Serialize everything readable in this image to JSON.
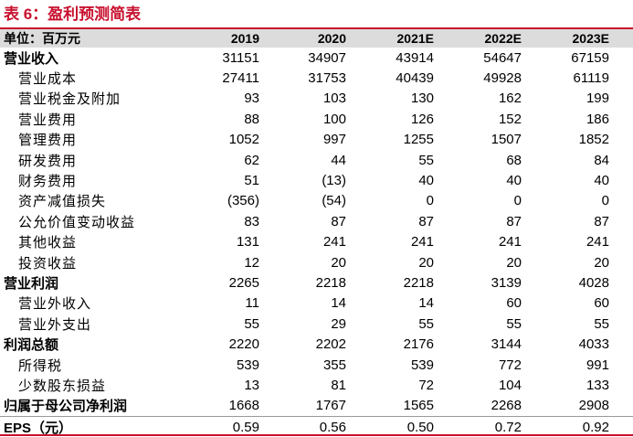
{
  "title": "表 6：盈利预测简表",
  "header": [
    "单位：百万元",
    "2019",
    "2020",
    "2021E",
    "2022E",
    "2023E"
  ],
  "rows": [
    {
      "label": "营业收入",
      "bold": true,
      "values": [
        "31151",
        "34907",
        "43914",
        "54647",
        "67159"
      ]
    },
    {
      "label": "营业成本",
      "bold": false,
      "values": [
        "27411",
        "31753",
        "40439",
        "49928",
        "61119"
      ]
    },
    {
      "label": "营业税金及附加",
      "bold": false,
      "values": [
        "93",
        "103",
        "130",
        "162",
        "199"
      ]
    },
    {
      "label": "营业费用",
      "bold": false,
      "values": [
        "88",
        "100",
        "126",
        "152",
        "186"
      ]
    },
    {
      "label": "管理费用",
      "bold": false,
      "values": [
        "1052",
        "997",
        "1255",
        "1507",
        "1852"
      ]
    },
    {
      "label": "研发费用",
      "bold": false,
      "values": [
        "62",
        "44",
        "55",
        "68",
        "84"
      ]
    },
    {
      "label": "财务费用",
      "bold": false,
      "values": [
        "51",
        "(13)",
        "40",
        "40",
        "40"
      ]
    },
    {
      "label": "资产减值损失",
      "bold": false,
      "values": [
        "(356)",
        "(54)",
        "0",
        "0",
        "0"
      ]
    },
    {
      "label": "公允价值变动收益",
      "bold": false,
      "values": [
        "83",
        "87",
        "87",
        "87",
        "87"
      ]
    },
    {
      "label": "其他收益",
      "bold": false,
      "values": [
        "131",
        "241",
        "241",
        "241",
        "241"
      ]
    },
    {
      "label": "投资收益",
      "bold": false,
      "values": [
        "12",
        "20",
        "20",
        "20",
        "20"
      ]
    },
    {
      "label": "营业利润",
      "bold": true,
      "values": [
        "2265",
        "2218",
        "2218",
        "3139",
        "4028"
      ]
    },
    {
      "label": "营业外收入",
      "bold": false,
      "values": [
        "11",
        "14",
        "14",
        "60",
        "60"
      ]
    },
    {
      "label": "营业外支出",
      "bold": false,
      "values": [
        "55",
        "29",
        "55",
        "55",
        "55"
      ]
    },
    {
      "label": "利润总额",
      "bold": true,
      "values": [
        "2220",
        "2202",
        "2176",
        "3144",
        "4033"
      ]
    },
    {
      "label": "所得税",
      "bold": false,
      "values": [
        "539",
        "355",
        "539",
        "772",
        "991"
      ]
    },
    {
      "label": "少数股东损益",
      "bold": false,
      "values": [
        "13",
        "81",
        "72",
        "104",
        "133"
      ]
    },
    {
      "label": "归属于母公司净利润",
      "bold": true,
      "values": [
        "1668",
        "1767",
        "1565",
        "2268",
        "2908"
      ]
    },
    {
      "label": "EPS（元）",
      "bold": true,
      "eps": true,
      "values": [
        "0.59",
        "0.56",
        "0.50",
        "0.72",
        "0.92"
      ]
    }
  ]
}
